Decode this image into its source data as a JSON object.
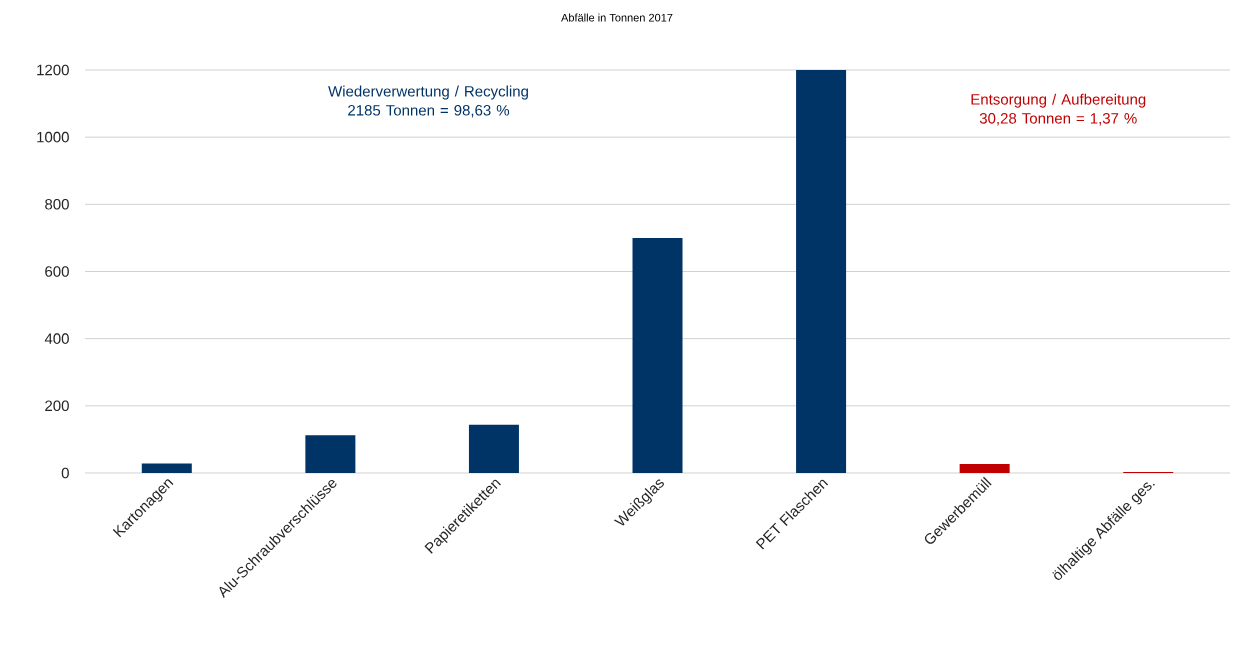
{
  "chart_data": {
    "type": "bar",
    "title": "Abfälle in Tonnen 2017",
    "categories": [
      "Kartonagen",
      "Alu-Schraubverschlüsse",
      "Papieretiketten",
      "Weißglas",
      "PET Flaschen",
      "Gewerbemüll",
      "ölhaltige Abfälle ges."
    ],
    "values": [
      28,
      112,
      144,
      700,
      1200,
      27,
      3
    ],
    "colors": [
      "#003366",
      "#003366",
      "#003366",
      "#003366",
      "#003366",
      "#c00000",
      "#c00000"
    ],
    "ylim": [
      0,
      1200
    ],
    "yticks": [
      0,
      200,
      400,
      600,
      800,
      1000,
      1200
    ],
    "grid": "y",
    "annotations": [
      "Wiederverwertung / Recycling\n2185 Tonnen = 98,63 %",
      "Entsorgung / Aufbereitung\n30,28 Tonnen = 1,37  %"
    ]
  }
}
